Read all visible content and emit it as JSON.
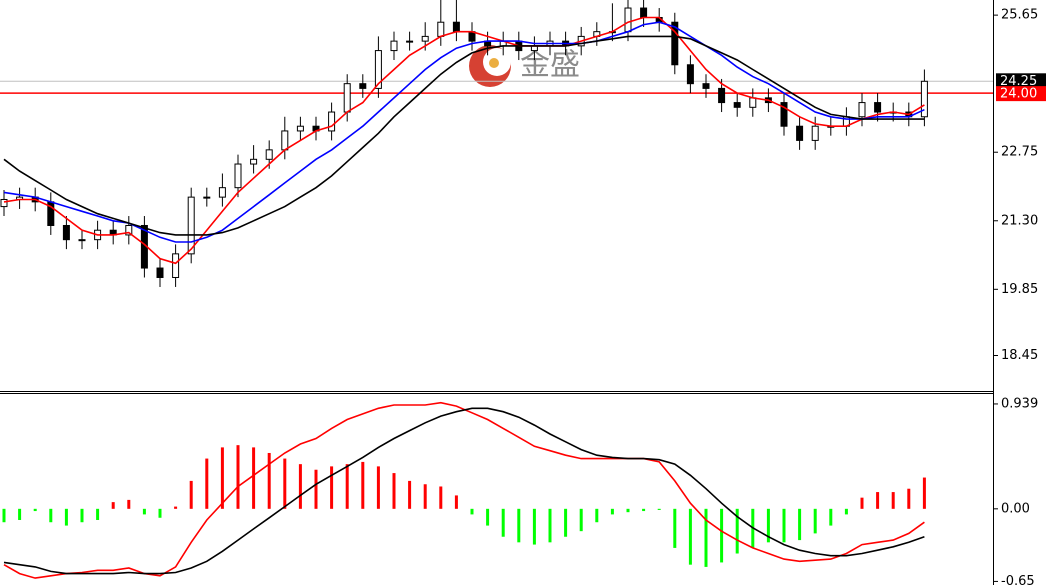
{
  "chart_data": [
    {
      "type": "candlestick",
      "watermark": "金盛",
      "ylim": [
        17.72,
        25.97
      ],
      "yticks": [
        25.65,
        22.75,
        {
          "value": 21.3,
          "label": "21.30"
        },
        19.85,
        18.45
      ],
      "up_color": "#ffffff",
      "down_color": "#000000",
      "wick_color": "#000000",
      "hline": {
        "value": 24,
        "label": "24.00",
        "color": "#ff0000"
      },
      "last_color": "#000000",
      "open": [
        21.6,
        21.75,
        21.8,
        21.7,
        21.2,
        20.9,
        20.9,
        21.1,
        21.0,
        21.2,
        20.3,
        20.1,
        20.6,
        21.8,
        21.8,
        22.0,
        22.5,
        22.6,
        22.8,
        23.2,
        23.3,
        23.2,
        23.6,
        24.2,
        24.1,
        24.9,
        25.1,
        25.1,
        25.2,
        25.5,
        25.3,
        25.1,
        25.0,
        25.1,
        24.9,
        25.0,
        25.1,
        25.0,
        25.2,
        25.3,
        25.3,
        25.8,
        25.6,
        25.5,
        24.6,
        24.2,
        24.1,
        23.8,
        23.7,
        23.9,
        23.8,
        23.3,
        23.0,
        23.3,
        23.3,
        23.5,
        23.8,
        23.6,
        23.6,
        23.5
      ],
      "high": [
        21.95,
        22.0,
        22.0,
        21.9,
        21.4,
        21.1,
        21.3,
        21.3,
        21.4,
        21.4,
        20.5,
        20.8,
        22.0,
        22.0,
        22.3,
        22.7,
        22.9,
        23.0,
        23.5,
        23.5,
        23.5,
        23.8,
        24.4,
        24.4,
        25.2,
        25.3,
        25.3,
        25.5,
        26.0,
        26.0,
        25.5,
        25.3,
        25.3,
        25.3,
        25.2,
        25.3,
        25.3,
        25.4,
        25.5,
        25.9,
        26.0,
        26.0,
        25.8,
        25.7,
        24.8,
        24.4,
        24.3,
        24.0,
        24.1,
        24.1,
        24.0,
        23.5,
        23.5,
        23.5,
        23.7,
        24.0,
        24.0,
        23.8,
        23.8,
        24.5
      ],
      "low": [
        21.4,
        21.55,
        21.5,
        21.0,
        20.7,
        20.7,
        20.7,
        20.8,
        20.8,
        20.1,
        19.9,
        19.9,
        20.4,
        21.6,
        21.6,
        21.8,
        22.3,
        22.4,
        22.6,
        23.0,
        23.0,
        23.0,
        23.4,
        23.9,
        23.9,
        24.7,
        24.9,
        24.9,
        25.0,
        25.1,
        24.9,
        24.8,
        24.8,
        24.7,
        24.7,
        24.8,
        24.8,
        24.8,
        25.0,
        25.1,
        25.1,
        25.4,
        25.3,
        24.4,
        24.0,
        23.9,
        23.6,
        23.5,
        23.5,
        23.6,
        23.1,
        22.8,
        22.8,
        23.1,
        23.1,
        23.3,
        23.4,
        23.4,
        23.3,
        23.3
      ],
      "close": [
        21.75,
        21.8,
        21.7,
        21.2,
        20.9,
        20.9,
        21.1,
        21.0,
        21.2,
        20.3,
        20.1,
        20.6,
        21.8,
        21.8,
        22.0,
        22.5,
        22.6,
        22.8,
        23.2,
        23.3,
        23.2,
        23.6,
        24.2,
        24.1,
        24.9,
        25.1,
        25.1,
        25.2,
        25.5,
        25.3,
        25.1,
        25.0,
        25.1,
        24.9,
        25.0,
        25.1,
        25.0,
        25.2,
        25.3,
        25.3,
        25.8,
        25.6,
        25.5,
        24.6,
        24.2,
        24.1,
        23.8,
        23.7,
        23.9,
        23.8,
        23.3,
        23.0,
        23.3,
        23.3,
        23.5,
        23.8,
        23.6,
        23.6,
        23.5,
        24.25
      ],
      "series": [
        {
          "color": "#ff0000",
          "values": [
            21.7,
            21.75,
            21.75,
            21.6,
            21.35,
            21.1,
            21.0,
            21.0,
            21.05,
            20.8,
            20.5,
            20.4,
            20.7,
            21.1,
            21.5,
            21.9,
            22.2,
            22.5,
            22.8,
            23.0,
            23.2,
            23.3,
            23.6,
            23.8,
            24.2,
            24.5,
            24.8,
            25.0,
            25.2,
            25.3,
            25.3,
            25.2,
            25.1,
            25.0,
            25.0,
            25.0,
            25.0,
            25.1,
            25.2,
            25.3,
            25.5,
            25.6,
            25.6,
            25.3,
            24.9,
            24.5,
            24.2,
            24.0,
            23.9,
            23.85,
            23.7,
            23.5,
            23.35,
            23.3,
            23.3,
            23.45,
            23.55,
            23.6,
            23.55,
            23.75
          ]
        },
        {
          "color": "#0000ff",
          "values": [
            21.9,
            21.85,
            21.8,
            21.7,
            21.6,
            21.5,
            21.4,
            21.3,
            21.25,
            21.1,
            20.95,
            20.85,
            20.85,
            20.95,
            21.1,
            21.35,
            21.6,
            21.85,
            22.1,
            22.35,
            22.6,
            22.8,
            23.05,
            23.3,
            23.6,
            23.9,
            24.2,
            24.5,
            24.75,
            24.95,
            25.05,
            25.1,
            25.1,
            25.1,
            25.05,
            25.05,
            25.05,
            25.05,
            25.1,
            25.2,
            25.3,
            25.45,
            25.5,
            25.4,
            25.2,
            25.0,
            24.8,
            24.55,
            24.35,
            24.2,
            24.0,
            23.8,
            23.6,
            23.5,
            23.45,
            23.45,
            23.5,
            23.5,
            23.5,
            23.65
          ]
        },
        {
          "color": "#000000",
          "values": [
            22.6,
            22.35,
            22.15,
            21.95,
            21.75,
            21.6,
            21.45,
            21.35,
            21.25,
            21.15,
            21.05,
            21.0,
            21.0,
            21.0,
            21.05,
            21.15,
            21.3,
            21.45,
            21.6,
            21.8,
            22.0,
            22.25,
            22.55,
            22.85,
            23.15,
            23.5,
            23.8,
            24.1,
            24.4,
            24.65,
            24.85,
            24.95,
            25.0,
            25.0,
            25.0,
            25.0,
            25.0,
            25.05,
            25.1,
            25.15,
            25.2,
            25.2,
            25.2,
            25.2,
            25.15,
            25.0,
            24.85,
            24.7,
            24.5,
            24.3,
            24.1,
            23.9,
            23.7,
            23.55,
            23.5,
            23.45,
            23.45,
            23.45,
            23.45,
            23.45
          ]
        }
      ]
    },
    {
      "type": "macd",
      "ylim": [
        -0.682,
        1.037
      ],
      "yticks": [
        0.939,
        {
          "value": 0,
          "label": "0.00"
        },
        -0.65
      ],
      "up_color": "#ff0000",
      "down_color": "#00ff00",
      "values": [
        -0.12,
        -0.1,
        -0.02,
        -0.12,
        -0.15,
        -0.12,
        -0.1,
        0.06,
        0.08,
        -0.05,
        -0.08,
        0.02,
        0.25,
        0.45,
        0.55,
        0.57,
        0.55,
        0.5,
        0.45,
        0.4,
        0.35,
        0.38,
        0.4,
        0.42,
        0.38,
        0.32,
        0.25,
        0.22,
        0.2,
        0.12,
        -0.05,
        -0.15,
        -0.25,
        -0.3,
        -0.32,
        -0.3,
        -0.25,
        -0.2,
        -0.12,
        -0.05,
        -0.03,
        -0.02,
        -0.01,
        -0.35,
        -0.5,
        -0.52,
        -0.48,
        -0.4,
        -0.35,
        -0.3,
        -0.3,
        -0.28,
        -0.22,
        -0.15,
        -0.05,
        0.1,
        0.15,
        0.15,
        0.18,
        0.28
      ],
      "series": [
        {
          "color": "#ff0000",
          "values": [
            -0.5,
            -0.58,
            -0.62,
            -0.6,
            -0.58,
            -0.57,
            -0.55,
            -0.55,
            -0.53,
            -0.58,
            -0.6,
            -0.52,
            -0.3,
            -0.1,
            0.05,
            0.2,
            0.3,
            0.4,
            0.5,
            0.58,
            0.63,
            0.72,
            0.8,
            0.85,
            0.9,
            0.93,
            0.93,
            0.93,
            0.95,
            0.92,
            0.86,
            0.8,
            0.72,
            0.64,
            0.56,
            0.52,
            0.48,
            0.45,
            0.45,
            0.45,
            0.45,
            0.45,
            0.42,
            0.25,
            0.05,
            -0.1,
            -0.2,
            -0.28,
            -0.35,
            -0.4,
            -0.45,
            -0.47,
            -0.46,
            -0.45,
            -0.4,
            -0.32,
            -0.3,
            -0.28,
            -0.22,
            -0.12
          ]
        },
        {
          "color": "#000000",
          "values": [
            -0.48,
            -0.5,
            -0.52,
            -0.56,
            -0.58,
            -0.58,
            -0.58,
            -0.58,
            -0.57,
            -0.58,
            -0.58,
            -0.57,
            -0.53,
            -0.47,
            -0.38,
            -0.28,
            -0.18,
            -0.08,
            0.02,
            0.12,
            0.22,
            0.3,
            0.38,
            0.46,
            0.55,
            0.63,
            0.7,
            0.77,
            0.83,
            0.87,
            0.9,
            0.9,
            0.87,
            0.82,
            0.75,
            0.67,
            0.6,
            0.53,
            0.48,
            0.46,
            0.45,
            0.45,
            0.44,
            0.4,
            0.3,
            0.18,
            0.05,
            -0.07,
            -0.17,
            -0.25,
            -0.32,
            -0.37,
            -0.4,
            -0.42,
            -0.42,
            -0.4,
            -0.37,
            -0.34,
            -0.3,
            -0.25
          ]
        }
      ]
    }
  ]
}
